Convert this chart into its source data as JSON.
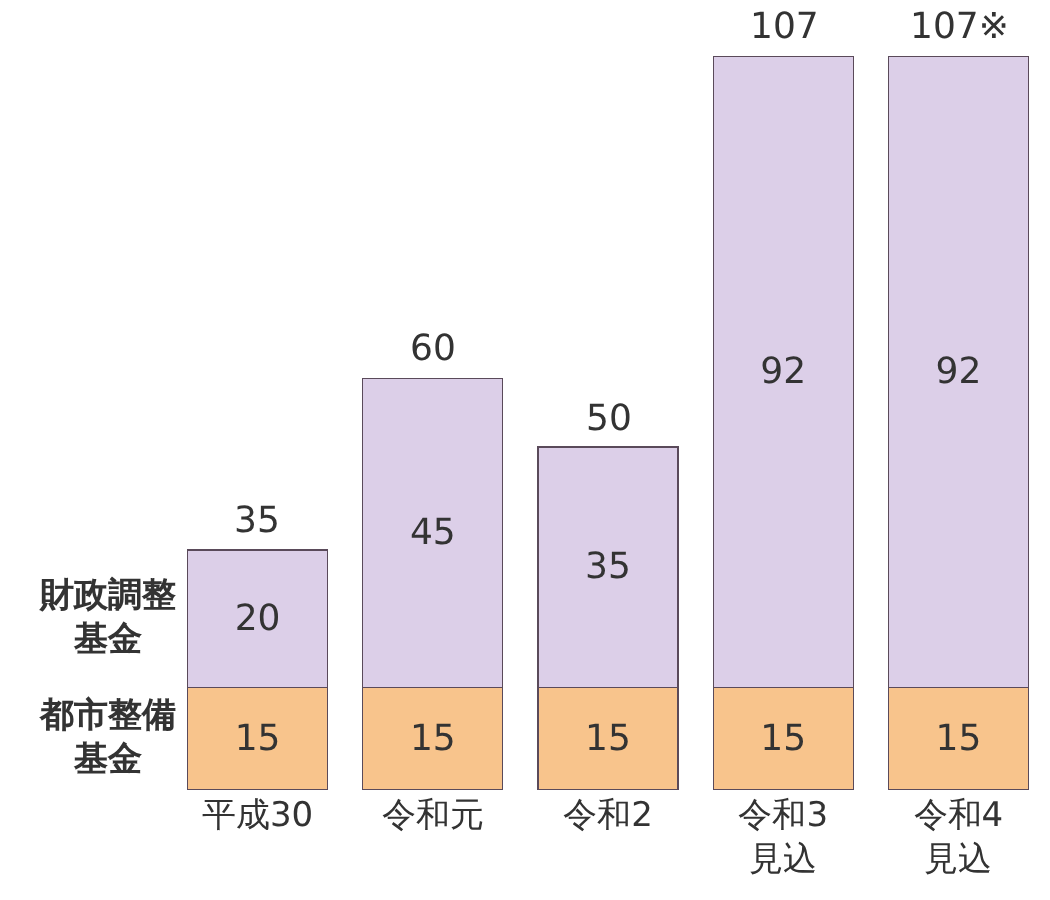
{
  "chart_data": {
    "type": "bar",
    "stacked": true,
    "categories": [
      "平成30",
      "令和元",
      "令和2",
      "令和3\n見込",
      "令和4\n見込"
    ],
    "series": [
      {
        "name": "都市整備基金",
        "color": "#f8c48c",
        "values": [
          15,
          15,
          15,
          15,
          15
        ]
      },
      {
        "name": "財政調整基金",
        "color": "#dccfe8",
        "values": [
          20,
          45,
          35,
          92,
          92
        ]
      }
    ],
    "data_labels": true,
    "totals": [
      "35",
      "60",
      "50",
      "107",
      "107※"
    ],
    "legend": false
  }
}
